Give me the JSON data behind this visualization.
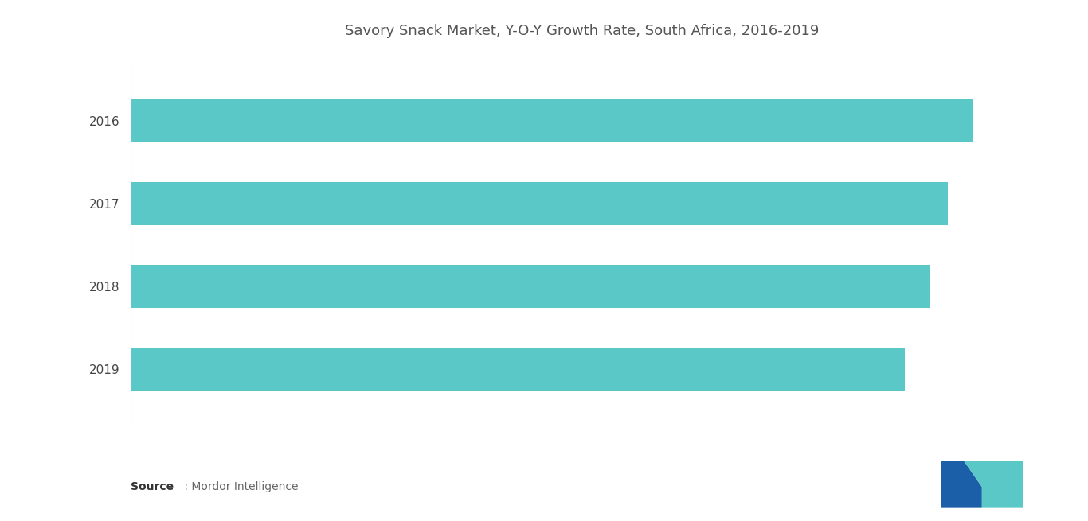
{
  "title": "Savory Snack Market, Y-O-Y Growth Rate, South Africa, 2016-2019",
  "categories": [
    "2019",
    "2018",
    "2017",
    "2016"
  ],
  "values": [
    90,
    93,
    95,
    98
  ],
  "bar_color": "#5BC8C8",
  "background_color": "#ffffff",
  "title_color": "#555555",
  "label_color": "#444444",
  "title_fontsize": 13,
  "label_fontsize": 11,
  "source_bold": "Source",
  "source_rest": " : Mordor Intelligence",
  "xlim": [
    0,
    105
  ],
  "bar_height": 0.52
}
